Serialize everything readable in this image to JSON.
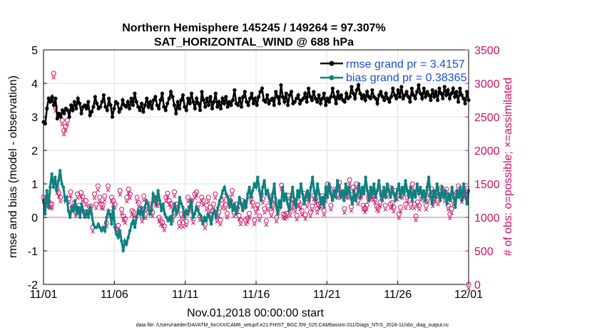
{
  "chart_data": {
    "type": "line",
    "title_line1": "Northern Hemisphere 145245 / 149264 = 97.307%",
    "title_line2": "SAT_HORIZONTAL_WIND @ 688 hPa",
    "xlabel": "Nov.01,2018 00:00:00 start",
    "ylabel_left": "rmse and bias (model - observation)",
    "ylabel_right": "# of obs: o=possible; ×=assimilated",
    "footer": "data file: /Users/raeder/DAI/ATM_forcXX/CAM6_setup/f.e21.FHIST_BGC.f09_025.CAM6assim.011/Diags_NTrS_2018-11/obs_diag_output.nc",
    "xlim": [
      0,
      30
    ],
    "ylim_left": [
      -2,
      5
    ],
    "ylim_right": [
      0,
      3500
    ],
    "xtick_values": [
      0,
      5,
      10,
      15,
      20,
      25,
      30
    ],
    "xtick_labels": [
      "11/01",
      "11/06",
      "11/11",
      "11/16",
      "11/21",
      "11/26",
      "12/01"
    ],
    "ytick_left": [
      -2,
      -1,
      0,
      1,
      2,
      3,
      4,
      5
    ],
    "ytick_right": [
      0,
      500,
      1000,
      1500,
      2000,
      2500,
      3000,
      3500
    ],
    "legend": [
      {
        "label": "rmse grand pr = 3.4157",
        "color": "#000000"
      },
      {
        "label": "bias grand pr = 0.38365",
        "color": "#0f8080"
      }
    ],
    "colors": {
      "rmse": "#000000",
      "bias": "#0f8080",
      "obs": "#cc1166",
      "legend_text": "#1a4fd6",
      "grid": "#e0e0e0",
      "zero_line": "#cfa6b3"
    },
    "rmse": [
      2.85,
      2.8,
      3.25,
      3.55,
      3.45,
      3.6,
      3.35,
      3.55,
      2.95,
      3.1,
      3.0,
      3.2,
      3.1,
      3.25,
      3.2,
      3.0,
      3.35,
      3.2,
      3.45,
      3.25,
      3.55,
      3.4,
      3.1,
      3.3,
      3.35,
      3.25,
      3.45,
      3.05,
      3.15,
      3.3,
      3.6,
      3.4,
      3.25,
      3.3,
      3.45,
      3.65,
      3.3,
      3.2,
      3.55,
      3.35,
      3.0,
      3.25,
      3.45,
      3.4,
      3.15,
      3.25,
      3.5,
      3.35,
      3.3,
      3.45,
      3.25,
      3.55,
      3.35,
      3.7,
      3.45,
      3.3,
      3.2,
      3.4,
      3.15,
      3.35,
      3.55,
      3.3,
      3.45,
      3.25,
      3.5,
      3.6,
      3.35,
      3.25,
      3.5,
      3.7,
      3.3,
      3.2,
      3.4,
      3.55,
      3.75,
      3.6,
      3.35,
      3.1,
      3.45,
      3.25,
      3.5,
      3.65,
      3.3,
      3.2,
      3.55,
      3.4,
      3.7,
      3.45,
      3.25,
      3.55,
      3.4,
      3.2,
      3.75,
      3.5,
      3.3,
      3.55,
      3.35,
      3.6,
      3.25,
      3.45,
      3.7,
      3.3,
      3.45,
      3.25,
      3.55,
      3.4,
      3.6,
      3.3,
      3.45,
      3.35,
      3.5,
      3.8,
      3.4,
      3.35,
      3.55,
      3.3,
      3.6,
      3.75,
      3.45,
      3.35,
      3.55,
      3.7,
      3.4,
      3.55,
      3.35,
      3.6,
      3.75,
      3.85,
      3.5,
      3.45,
      3.65,
      3.4,
      3.5,
      3.55,
      3.35,
      3.75,
      3.6,
      3.4,
      3.95,
      3.6,
      3.45,
      3.7,
      3.35,
      3.65,
      3.75,
      3.4,
      3.45,
      3.55,
      3.65,
      3.4,
      3.5,
      3.55,
      3.7,
      3.45,
      3.85,
      3.6,
      3.5,
      3.75,
      3.55,
      3.45,
      3.65,
      3.4,
      3.55,
      3.7,
      3.35,
      3.55,
      3.45,
      3.6,
      3.85,
      3.6,
      3.4,
      3.75,
      3.55,
      3.65,
      3.5,
      3.45,
      3.7,
      3.55,
      3.6,
      3.9,
      3.7,
      3.55,
      3.8,
      3.95,
      3.7,
      3.55,
      3.65,
      3.5,
      3.75,
      3.6,
      3.55,
      3.8,
      3.6,
      3.55,
      3.4,
      3.65,
      3.75,
      3.6,
      3.5,
      3.7,
      3.55,
      3.45,
      3.6,
      3.85,
      3.65,
      3.55,
      3.8,
      3.6,
      3.9,
      3.55,
      3.65,
      3.75,
      3.6,
      3.45,
      3.85,
      3.65,
      3.55,
      3.75,
      3.95,
      3.7,
      3.55,
      3.85,
      3.6,
      3.75,
      3.65,
      3.5,
      3.8,
      3.6,
      3.75,
      3.5,
      3.85,
      3.7,
      3.55,
      3.9,
      3.65,
      3.8,
      3.55,
      3.7,
      3.85,
      3.6,
      3.75,
      3.45,
      3.85,
      3.65,
      3.55,
      3.4,
      3.75,
      3.5
    ],
    "bias": [
      0.5,
      0.1,
      0.8,
      0.3,
      0.9,
      1.3,
      0.9,
      1.2,
      0.8,
      1.1,
      1.4,
      1.0,
      0.9,
      0.5,
      0.6,
      0.2,
      0.0,
      0.3,
      0.2,
      0.5,
      0.1,
      0.3,
      0.0,
      0.4,
      0.2,
      0.0,
      0.2,
      0.0,
      0.3,
      0.1,
      -0.2,
      -0.3,
      -0.3,
      -0.2,
      -0.3,
      -0.4,
      -0.3,
      -0.4,
      0.0,
      0.2,
      0.1,
      -0.2,
      0.3,
      -0.3,
      -0.5,
      -0.6,
      -0.4,
      -0.7,
      -1.0,
      -0.7,
      -0.8,
      -0.6,
      -0.4,
      -0.2,
      -0.1,
      -0.3,
      0.0,
      0.2,
      0.1,
      0.3,
      0.0,
      0.3,
      0.5,
      0.4,
      0.1,
      0.2,
      0.7,
      0.6,
      0.4,
      0.8,
      0.5,
      0.2,
      0.4,
      0.1,
      0.0,
      -0.1,
      0.0,
      -0.2,
      0.2,
      0.4,
      0.1,
      0.2,
      0.6,
      0.4,
      0.3,
      0.0,
      0.2,
      0.1,
      0.3,
      0.5,
      0.0,
      0.1,
      0.3,
      0.2,
      0.1,
      0.0,
      -0.2,
      0.0,
      -0.1,
      0.1,
      0.0,
      -0.2,
      0.1,
      0.2,
      0.0,
      0.3,
      0.5,
      0.6,
      0.8,
      0.9,
      0.7,
      0.6,
      0.3,
      0.5,
      0.2,
      0.4,
      0.1,
      0.3,
      0.6,
      0.4,
      0.2,
      0.5,
      0.3,
      0.7,
      0.9,
      0.6,
      0.8,
      1.0,
      0.9,
      1.2,
      0.8,
      0.5,
      0.9,
      1.1,
      0.7,
      0.8,
      0.6,
      0.3,
      0.7,
      1.0,
      0.4,
      0.1,
      0.5,
      0.3,
      0.9,
      0.5,
      0.7,
      0.4,
      0.2,
      0.6,
      0.9,
      0.5,
      0.3,
      0.8,
      0.6,
      1.0,
      0.7,
      0.4,
      0.6,
      0.8,
      0.5,
      0.9,
      1.2,
      0.8,
      0.5,
      1.0,
      0.7,
      0.4,
      0.6,
      0.3,
      0.9,
      0.6,
      1.0,
      0.7,
      0.5,
      0.8,
      0.6,
      1.1,
      0.9,
      0.6,
      0.8,
      0.5,
      1.0,
      0.7,
      0.9,
      0.6,
      0.4,
      0.8,
      0.5,
      0.7,
      1.0,
      0.6,
      0.9,
      0.7,
      1.2,
      0.8,
      0.5,
      0.9,
      0.7,
      1.0,
      0.6,
      0.8,
      1.1,
      0.7,
      0.5,
      0.9,
      0.6,
      1.0,
      0.8,
      0.6,
      0.9,
      0.7,
      0.5,
      0.8,
      1.0,
      0.6,
      0.9,
      0.7,
      1.1,
      0.8,
      0.6,
      0.9,
      0.5,
      0.8,
      0.6,
      1.0,
      0.7,
      0.9,
      0.6,
      0.8,
      0.5,
      0.9,
      1.2,
      0.7,
      0.4,
      0.8,
      0.6,
      1.0,
      0.7,
      0.5,
      0.9,
      0.6,
      0.8,
      0.4,
      0.7,
      0.5,
      0.9,
      0.6,
      0.3,
      0.8,
      0.6,
      0.9,
      0.5,
      1.0,
      0.7,
      0.4,
      0.8
    ],
    "obs_possible": [
      1300,
      1250,
      1300,
      1240,
      1200,
      1200,
      3150,
      2650,
      1420,
      1370,
      1300,
      2450,
      2300,
      2360,
      2450,
      1280,
      1380,
      1150,
      1220,
      1080,
      1350,
      1180,
      1370,
      1310,
      1080,
      1250,
      1080,
      1160,
      1170,
      850,
      1350,
      1200,
      1470,
      1300,
      1200,
      1190,
      1320,
      920,
      1470,
      1080,
      1300,
      1250,
      1200,
      820,
      880,
      1400,
      1120,
      1020,
      980,
      1300,
      1420,
      1350,
      1100,
      1080,
      990,
      1300,
      1220,
      1140,
      1000,
      1320,
      1050,
      1170,
      1200,
      1120,
      1080,
      1300,
      1240,
      1230,
      1000,
      950,
      930,
      870,
      1300,
      1360,
      1250,
      1210,
      1010,
      1380,
      1200,
      1150,
      920,
      1050,
      920,
      1050,
      940,
      1300,
      1150,
      1250,
      980,
      1350,
      1380,
      1200,
      1020,
      1300,
      1250,
      900,
      1180,
      1300,
      1150,
      1050,
      1200,
      1350,
      1000,
      1080,
      960,
      1200,
      1320,
      1190,
      1060,
      1300,
      1250,
      1400,
      1080,
      1200,
      1140,
      1030,
      960,
      1250,
      1200,
      960,
      990,
      1060,
      1290,
      1220,
      960,
      1130,
      1190,
      1020,
      1350,
      1280,
      1130,
      950,
      1170,
      1310,
      1080,
      1190,
      1270,
      1000,
      1120,
      1230,
      1480,
      1050,
      1040,
      1060,
      1330,
      1090,
      1200,
      1270,
      1150,
      1030,
      1230,
      1190,
      1100,
      1360,
      1040,
      1220,
      1300,
      1080,
      1170,
      1330,
      1270,
      1130,
      1200,
      1210,
      1320,
      1100,
      1300,
      1500,
      1450,
      1180,
      1350,
      1420,
      1400,
      1350,
      1520,
      1350,
      1380,
      1130,
      1360,
      1350,
      1560,
      1160,
      1450,
      1320,
      1500,
      1260,
      1350,
      1360,
      1180,
      1140,
      1180,
      1300,
      1330,
      1350,
      1320,
      1280,
      1170,
      1150,
      1230,
      1320,
      1380,
      1180,
      1360,
      1450,
      1200,
      1220,
      1150,
      1400,
      1330,
      1050,
      1150,
      1350,
      1400,
      1200,
      1300,
      1380,
      1200,
      1500,
      1200,
      1020,
      1230,
      1180,
      1320,
      1350,
      1300,
      1180,
      1290,
      1380,
      1430,
      1230,
      1300,
      1370,
      1260,
      1340,
      1450,
      1380,
      1300,
      1420,
      1180,
      1050,
      1130,
      1250,
      1330,
      1370,
      1470,
      1380,
      1290,
      1360,
      1400,
      1430,
      0
    ]
  }
}
